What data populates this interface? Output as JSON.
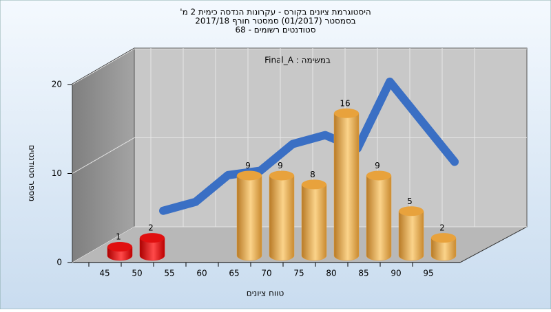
{
  "chart_data": {
    "type": "bar",
    "title": [
      "היסטוגרמת ציונים בקורס - עקרונות הנדסה כימית 2 מ'",
      "בסמסטר  (01/2017)  סמסטר חורף 2017/18",
      "סטודנטים רשומים - 68"
    ],
    "annotation": "במשימה : Final_A",
    "x_label": "טווח ציונים",
    "y_label": "מספר סטודנטים",
    "categories": [
      "45",
      "50",
      "55",
      "60",
      "65",
      "70",
      "75",
      "80",
      "85",
      "90",
      "95"
    ],
    "values": [
      1,
      2,
      null,
      null,
      9,
      9,
      8,
      16,
      9,
      5,
      2
    ],
    "colors": [
      "#e01010",
      "#e01010",
      null,
      null,
      "#e8a23c",
      "#e8a23c",
      "#e8a23c",
      "#e8a23c",
      "#e8a23c",
      "#e8a23c",
      "#e8a23c"
    ],
    "curve": {
      "color": "#3a6fc4",
      "values": [
        null,
        3.5,
        4.5,
        7.5,
        8,
        11,
        12,
        10.5,
        18,
        13.5,
        9
      ]
    },
    "ylim": [
      0,
      20
    ],
    "yticks": [
      0,
      10,
      20
    ],
    "grid": true
  }
}
